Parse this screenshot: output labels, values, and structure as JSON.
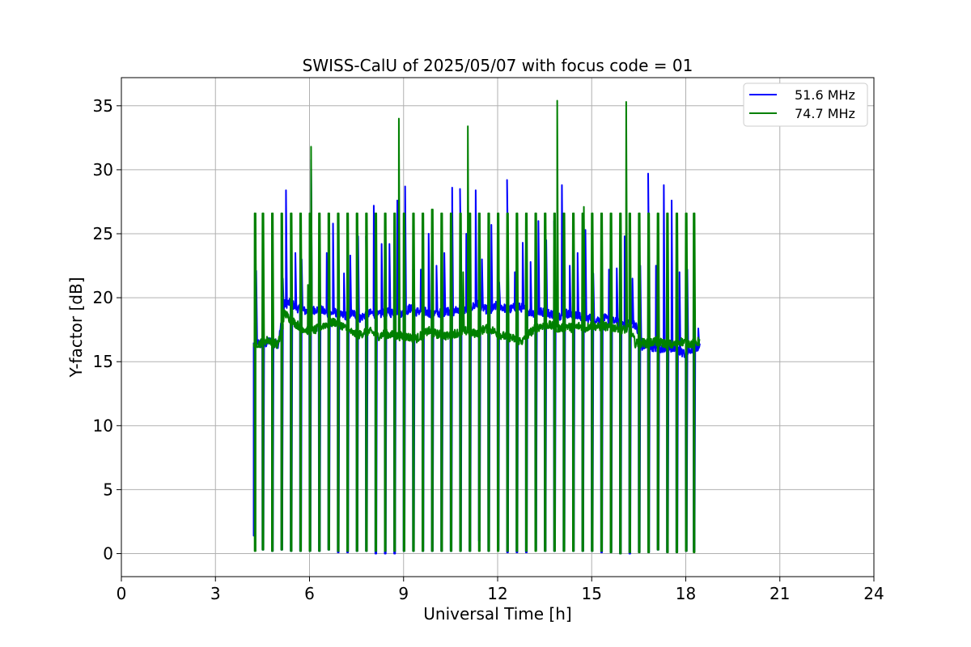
{
  "chart_data": {
    "type": "line",
    "title": "SWISS-CalU of 2025/05/07 with focus code = 01",
    "xlabel": "Universal Time [h]",
    "ylabel": "Y-factor [dB]",
    "xlim": [
      0,
      24
    ],
    "ylim": [
      -1.8,
      37.2
    ],
    "xticks": [
      0,
      3,
      6,
      9,
      12,
      15,
      18,
      21,
      24
    ],
    "xtick_labels": [
      "0",
      "3",
      "6",
      "9",
      "12",
      "15",
      "18",
      "21",
      "24"
    ],
    "yticks": [
      0,
      5,
      10,
      15,
      20,
      25,
      30,
      35
    ],
    "ytick_labels": [
      "0",
      "5",
      "10",
      "15",
      "20",
      "25",
      "30",
      "35"
    ],
    "grid": true,
    "legend_position": "top-right",
    "series": [
      {
        "name": "51.6 MHz",
        "color": "#0000ff",
        "x": [
          4.22,
          4.4,
          4.55,
          4.7,
          4.85,
          5.0,
          5.2,
          5.4,
          5.6,
          5.8,
          6.0,
          6.2,
          6.4,
          6.6,
          6.8,
          7.0,
          7.2,
          7.4,
          7.6,
          7.8,
          8.0,
          8.2,
          8.4,
          8.6,
          8.8,
          9.0,
          9.2,
          9.4,
          9.6,
          9.8,
          10.0,
          10.2,
          10.4,
          10.6,
          10.8,
          11.0,
          11.2,
          11.4,
          11.6,
          11.8,
          12.0,
          12.2,
          12.4,
          12.6,
          12.8,
          13.0,
          13.2,
          13.4,
          13.6,
          13.8,
          14.0,
          14.2,
          14.4,
          14.6,
          14.8,
          15.0,
          15.2,
          15.4,
          15.6,
          15.8,
          16.0,
          16.2,
          16.4,
          16.6,
          16.8,
          17.0,
          17.2,
          17.4,
          17.6,
          17.8,
          18.0,
          18.2,
          18.45
        ],
        "y": [
          16.4,
          16.5,
          16.3,
          16.6,
          16.5,
          16.4,
          19.5,
          19.6,
          19.2,
          19.0,
          18.9,
          19.1,
          19.0,
          18.7,
          18.9,
          18.6,
          18.6,
          18.8,
          18.4,
          18.7,
          18.8,
          18.6,
          18.9,
          18.8,
          19.0,
          18.7,
          19.2,
          18.9,
          19.0,
          18.8,
          18.8,
          18.8,
          19.0,
          18.9,
          19.2,
          19.0,
          19.3,
          19.5,
          19.1,
          19.0,
          19.5,
          19.2,
          19.1,
          19.3,
          19.2,
          18.9,
          18.8,
          18.9,
          18.8,
          18.7,
          18.6,
          18.8,
          18.5,
          18.6,
          18.4,
          18.4,
          18.3,
          18.4,
          18.2,
          18.1,
          18.0,
          18.1,
          17.9,
          16.2,
          16.3,
          16.1,
          16.0,
          16.2,
          16.0,
          15.8,
          15.6,
          16.0,
          16.2
        ],
        "spikes_x": [
          4.3,
          5.15,
          5.25,
          5.55,
          5.75,
          6.05,
          6.3,
          6.55,
          6.75,
          7.1,
          7.3,
          7.55,
          7.8,
          8.05,
          8.3,
          8.55,
          8.8,
          9.05,
          9.3,
          9.55,
          9.8,
          10.05,
          10.3,
          10.55,
          10.8,
          11.0,
          11.3,
          11.5,
          11.8,
          12.05,
          12.3,
          12.55,
          12.8,
          13.05,
          13.3,
          13.55,
          13.8,
          14.05,
          14.3,
          14.55,
          14.8,
          15.05,
          15.3,
          15.55,
          15.8,
          16.05,
          16.3,
          16.55,
          16.8,
          17.05,
          17.3,
          17.55,
          17.8,
          18.05,
          18.25,
          18.4
        ],
        "spikes_y": [
          22.1,
          21.5,
          28.4,
          23.5,
          23.0,
          30.8,
          23.6,
          23.5,
          25.8,
          21.9,
          23.3,
          24.8,
          24.8,
          27.2,
          24.2,
          24.2,
          27.6,
          28.7,
          22.2,
          22.2,
          25.0,
          22.5,
          23.5,
          28.6,
          28.5,
          25.0,
          28.4,
          23.0,
          25.7,
          21.2,
          29.2,
          22.0,
          24.3,
          22.8,
          26.0,
          24.5,
          26.0,
          28.8,
          22.5,
          23.5,
          25.3,
          21.9,
          21.5,
          22.2,
          22.3,
          24.8,
          21.5,
          22.5,
          29.7,
          22.5,
          28.8,
          27.6,
          22.0,
          22.2,
          20.4,
          17.6
        ],
        "calib_x": [
          4.22,
          4.5,
          4.8,
          5.1,
          5.4,
          5.7,
          6.0,
          6.3,
          6.6,
          6.9,
          7.2,
          7.5,
          7.8,
          8.1,
          8.4,
          8.7,
          9.0,
          9.3,
          9.6,
          9.9,
          10.2,
          10.5,
          10.8,
          11.1,
          11.4,
          11.7,
          12.0,
          12.3,
          12.6,
          12.9,
          13.2,
          13.5,
          13.8,
          14.1,
          14.4,
          14.7,
          15.0,
          15.3,
          15.6,
          15.9,
          16.2,
          16.5,
          16.8,
          17.1,
          17.4,
          17.7,
          18.0,
          18.25
        ],
        "calib_low": [
          1.4,
          0.3,
          0.2,
          0.3,
          0.2,
          0.2,
          0.2,
          0.2,
          0.3,
          0.1,
          0.1,
          0.2,
          0.2,
          0.0,
          0.0,
          0.0,
          0.2,
          0.2,
          0.2,
          0.2,
          0.2,
          0.2,
          0.2,
          0.2,
          1.0,
          0.2,
          0.3,
          0.1,
          0.1,
          0.1,
          0.3,
          0.2,
          0.2,
          0.2,
          0.2,
          0.2,
          0.2,
          0.1,
          0.1,
          0.0,
          0.0,
          0.1,
          0.1,
          0.3,
          0.1,
          0.1,
          0.2,
          0.2
        ]
      },
      {
        "name": "74.7 MHz",
        "color": "#008000",
        "x": [
          4.22,
          4.4,
          4.55,
          4.7,
          4.85,
          5.0,
          5.2,
          5.4,
          5.6,
          5.8,
          6.0,
          6.2,
          6.4,
          6.6,
          6.8,
          7.0,
          7.2,
          7.4,
          7.6,
          7.8,
          8.0,
          8.2,
          8.4,
          8.6,
          8.8,
          9.0,
          9.2,
          9.4,
          9.6,
          9.8,
          10.0,
          10.2,
          10.4,
          10.6,
          10.8,
          11.0,
          11.2,
          11.4,
          11.6,
          11.8,
          12.0,
          12.2,
          12.4,
          12.6,
          12.8,
          13.0,
          13.2,
          13.4,
          13.6,
          13.8,
          14.0,
          14.2,
          14.4,
          14.6,
          14.8,
          15.0,
          15.2,
          15.4,
          15.6,
          15.8,
          16.0,
          16.2,
          16.4,
          16.6,
          16.8,
          17.0,
          17.2,
          17.4,
          17.6,
          17.8,
          18.0,
          18.2,
          18.45
        ],
        "y": [
          16.5,
          16.4,
          16.6,
          16.7,
          16.5,
          16.3,
          18.8,
          18.3,
          17.9,
          17.6,
          17.4,
          17.5,
          17.8,
          18.0,
          18.1,
          17.9,
          17.5,
          17.2,
          17.1,
          17.4,
          17.3,
          17.0,
          17.2,
          17.1,
          17.0,
          17.0,
          16.9,
          16.8,
          17.1,
          17.4,
          17.2,
          17.1,
          17.0,
          17.2,
          17.3,
          17.4,
          17.2,
          17.3,
          17.6,
          17.5,
          17.2,
          17.0,
          16.9,
          16.7,
          16.6,
          17.2,
          17.6,
          17.8,
          17.9,
          17.7,
          17.6,
          17.8,
          17.6,
          17.8,
          17.6,
          17.9,
          17.7,
          17.8,
          17.6,
          17.7,
          17.5,
          17.6,
          16.4,
          16.5,
          16.4,
          16.6,
          16.5,
          16.4,
          16.3,
          16.6,
          16.5,
          16.4,
          16.6
        ],
        "spikes_x": [
          6.05,
          8.85,
          11.05,
          13.9,
          16.1,
          14.75,
          10.9,
          5.95
        ],
        "spikes_y": [
          31.8,
          34.0,
          33.4,
          35.4,
          35.3,
          27.1,
          22.0,
          21.0
        ],
        "calib_x": [
          4.25,
          4.5,
          4.8,
          5.1,
          5.4,
          5.7,
          6.0,
          6.3,
          6.6,
          6.9,
          7.2,
          7.5,
          7.8,
          8.1,
          8.4,
          8.7,
          9.0,
          9.3,
          9.6,
          9.9,
          10.2,
          10.5,
          10.8,
          11.1,
          11.4,
          11.7,
          12.0,
          12.3,
          12.6,
          12.9,
          13.2,
          13.5,
          13.8,
          14.1,
          14.4,
          14.7,
          15.0,
          15.3,
          15.6,
          15.9,
          16.2,
          16.5,
          16.8,
          17.1,
          17.4,
          17.7,
          18.0,
          18.25
        ],
        "calib_high": [
          26.6,
          26.6,
          26.6,
          26.6,
          26.6,
          26.6,
          26.6,
          26.6,
          26.6,
          26.6,
          26.6,
          26.6,
          26.6,
          26.6,
          26.6,
          26.6,
          26.6,
          26.6,
          26.6,
          26.9,
          26.6,
          26.6,
          26.6,
          26.6,
          26.6,
          26.6,
          26.6,
          26.6,
          26.6,
          26.6,
          26.6,
          26.6,
          26.6,
          26.6,
          26.6,
          26.6,
          26.6,
          26.6,
          26.6,
          26.6,
          26.6,
          26.6,
          26.6,
          26.6,
          26.6,
          26.6,
          26.6,
          26.6
        ],
        "calib_low": [
          0.2,
          0.3,
          0.2,
          0.3,
          0.2,
          0.2,
          0.2,
          0.2,
          0.3,
          0.2,
          0.2,
          0.2,
          0.2,
          0.2,
          0.2,
          0.2,
          0.2,
          0.2,
          0.2,
          0.2,
          0.2,
          0.2,
          0.2,
          0.2,
          0.2,
          0.2,
          0.2,
          0.2,
          0.2,
          0.2,
          0.2,
          0.2,
          0.2,
          0.2,
          0.2,
          0.2,
          0.2,
          0.2,
          0.1,
          0.0,
          0.1,
          0.1,
          0.1,
          0.3,
          0.1,
          0.1,
          0.2,
          0.1
        ]
      }
    ]
  }
}
